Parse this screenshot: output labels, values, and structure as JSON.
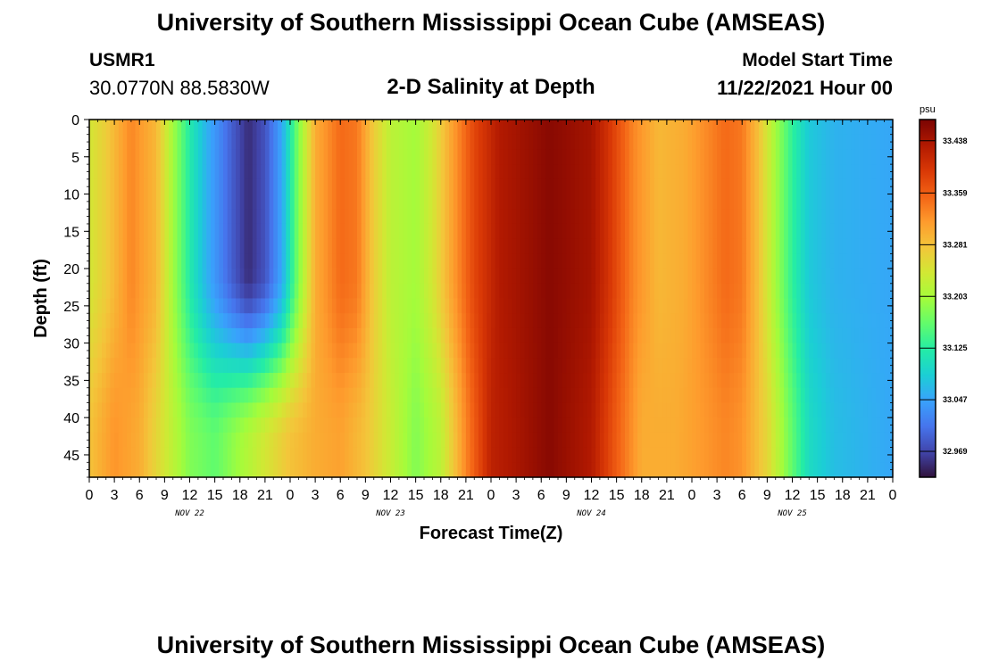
{
  "header": {
    "title": "University of Southern Mississippi Ocean Cube (AMSEAS)",
    "station_id": "USMR1",
    "station_coords": "30.0770N  88.5830W",
    "plot_title": "2-D Salinity at Depth",
    "start_label": "Model Start Time",
    "start_value": "11/22/2021 Hour 00"
  },
  "footer": {
    "title": "University of Southern Mississippi Ocean Cube (AMSEAS)"
  },
  "chart_data": {
    "type": "heatmap",
    "title": "2-D Salinity at Depth",
    "xlabel": "Forecast Time(Z)",
    "ylabel": "Depth (ft)",
    "x_range": [
      0,
      96
    ],
    "y_range": [
      0,
      48
    ],
    "y_inverted": true,
    "x_ticks": [
      "0",
      "3",
      "6",
      "9",
      "12",
      "15",
      "18",
      "21",
      "0",
      "3",
      "6",
      "9",
      "12",
      "15",
      "18",
      "21",
      "0",
      "3",
      "6",
      "9",
      "12",
      "15",
      "18",
      "21",
      "0",
      "3",
      "6",
      "9",
      "12",
      "15",
      "18",
      "21",
      "0"
    ],
    "date_labels": [
      {
        "hour": 12,
        "label": "NOV 22"
      },
      {
        "hour": 36,
        "label": "NOV 23"
      },
      {
        "hour": 60,
        "label": "NOV 24"
      },
      {
        "hour": 84,
        "label": "NOV 25"
      }
    ],
    "y_ticks": [
      0,
      5,
      10,
      15,
      20,
      25,
      30,
      35,
      40,
      45
    ],
    "colorbar": {
      "unit": "psu",
      "range": [
        32.93,
        33.47
      ],
      "labels": [
        "33.438",
        "33.359",
        "33.281",
        "33.203",
        "33.125",
        "33.047",
        "32.969"
      ],
      "stops": [
        "#30123b",
        "#4145ab",
        "#4675ed",
        "#39a2fc",
        "#1bcfd4",
        "#24eca6",
        "#61fc6c",
        "#a4fc3b",
        "#d1e834",
        "#f3c63a",
        "#fe9b2d",
        "#f36315",
        "#d93806",
        "#b11901",
        "#7a0402"
      ]
    },
    "surface_profile": [
      {
        "t": 0,
        "v": 33.24
      },
      {
        "t": 2,
        "v": 33.27
      },
      {
        "t": 5,
        "v": 33.33
      },
      {
        "t": 8,
        "v": 33.29
      },
      {
        "t": 10,
        "v": 33.2
      },
      {
        "t": 12,
        "v": 33.12
      },
      {
        "t": 14,
        "v": 33.06
      },
      {
        "t": 17,
        "v": 32.99
      },
      {
        "t": 19,
        "v": 32.95
      },
      {
        "t": 21,
        "v": 32.98
      },
      {
        "t": 23,
        "v": 33.05
      },
      {
        "t": 25,
        "v": 33.18
      },
      {
        "t": 27,
        "v": 33.3
      },
      {
        "t": 30,
        "v": 33.35
      },
      {
        "t": 32,
        "v": 33.34
      },
      {
        "t": 34,
        "v": 33.27
      },
      {
        "t": 36,
        "v": 33.22
      },
      {
        "t": 39,
        "v": 33.2
      },
      {
        "t": 41,
        "v": 33.24
      },
      {
        "t": 43,
        "v": 33.3
      },
      {
        "t": 46,
        "v": 33.38
      },
      {
        "t": 49,
        "v": 33.43
      },
      {
        "t": 55,
        "v": 33.46
      },
      {
        "t": 60,
        "v": 33.44
      },
      {
        "t": 62,
        "v": 33.4
      },
      {
        "t": 65,
        "v": 33.33
      },
      {
        "t": 68,
        "v": 33.29
      },
      {
        "t": 71,
        "v": 33.3
      },
      {
        "t": 74,
        "v": 33.33
      },
      {
        "t": 76,
        "v": 33.35
      },
      {
        "t": 78,
        "v": 33.34
      },
      {
        "t": 80,
        "v": 33.28
      },
      {
        "t": 82,
        "v": 33.2
      },
      {
        "t": 84,
        "v": 33.13
      },
      {
        "t": 86,
        "v": 33.08
      },
      {
        "t": 89,
        "v": 33.06
      },
      {
        "t": 96,
        "v": 33.05
      }
    ],
    "deep_profile": [
      {
        "t": 0,
        "v": 33.28
      },
      {
        "t": 3,
        "v": 33.32
      },
      {
        "t": 6,
        "v": 33.3
      },
      {
        "t": 9,
        "v": 33.24
      },
      {
        "t": 12,
        "v": 33.18
      },
      {
        "t": 15,
        "v": 33.16
      },
      {
        "t": 18,
        "v": 33.2
      },
      {
        "t": 21,
        "v": 33.24
      },
      {
        "t": 24,
        "v": 33.28
      },
      {
        "t": 27,
        "v": 33.3
      },
      {
        "t": 30,
        "v": 33.31
      },
      {
        "t": 33,
        "v": 33.28
      },
      {
        "t": 36,
        "v": 33.23
      },
      {
        "t": 39,
        "v": 33.18
      },
      {
        "t": 42,
        "v": 33.22
      },
      {
        "t": 45,
        "v": 33.33
      },
      {
        "t": 48,
        "v": 33.42
      },
      {
        "t": 55,
        "v": 33.46
      },
      {
        "t": 60,
        "v": 33.43
      },
      {
        "t": 63,
        "v": 33.36
      },
      {
        "t": 66,
        "v": 33.3
      },
      {
        "t": 70,
        "v": 33.3
      },
      {
        "t": 74,
        "v": 33.32
      },
      {
        "t": 76,
        "v": 33.33
      },
      {
        "t": 78,
        "v": 33.32
      },
      {
        "t": 81,
        "v": 33.26
      },
      {
        "t": 84,
        "v": 33.16
      },
      {
        "t": 86,
        "v": 33.1
      },
      {
        "t": 89,
        "v": 33.07
      },
      {
        "t": 96,
        "v": 33.05
      }
    ]
  }
}
